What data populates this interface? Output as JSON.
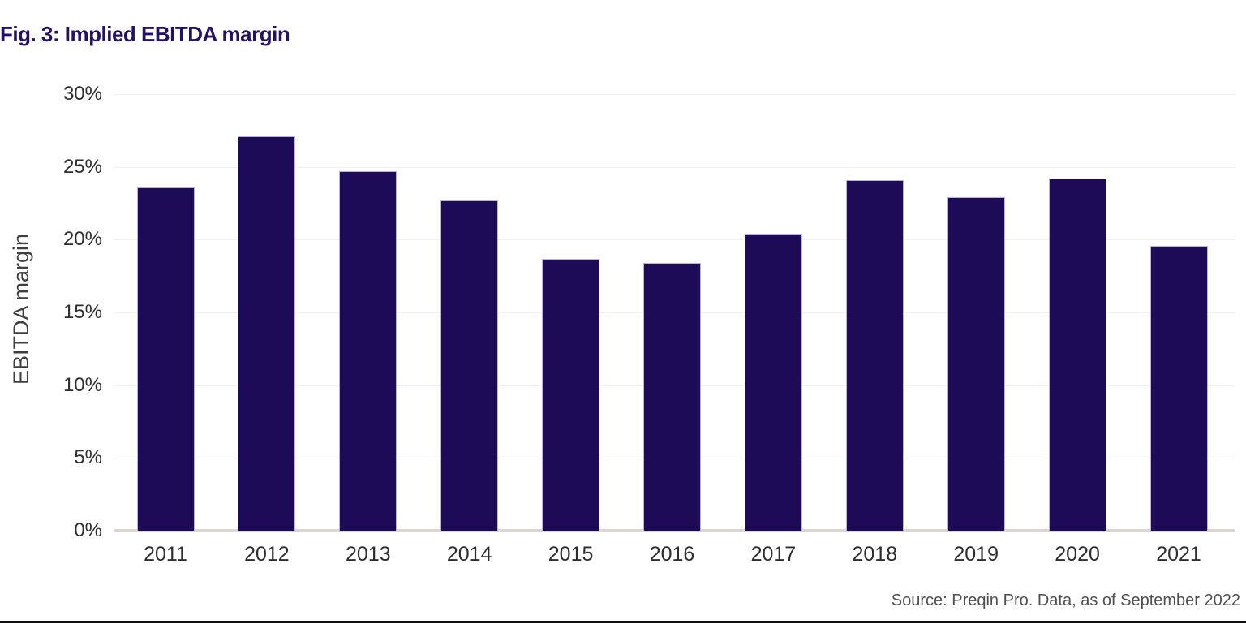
{
  "figure": {
    "title": "Fig. 3: Implied EBITDA margin",
    "source": "Source: Preqin Pro. Data, as of September 2022"
  },
  "chart_data": {
    "type": "bar",
    "title": "Fig. 3: Implied EBITDA margin",
    "categories": [
      "2011",
      "2012",
      "2013",
      "2014",
      "2015",
      "2016",
      "2017",
      "2018",
      "2019",
      "2020",
      "2021"
    ],
    "values": [
      23.6,
      27.1,
      24.7,
      22.7,
      18.7,
      18.4,
      20.4,
      24.1,
      22.9,
      24.2,
      19.6
    ],
    "xlabel": "",
    "ylabel": "EBITDA margin",
    "ylim": [
      0,
      30
    ],
    "ytick_step": 5,
    "ytick_labels": [
      "0%",
      "5%",
      "10%",
      "15%",
      "20%",
      "25%",
      "30%"
    ],
    "grid": "horizontal-only",
    "legend": "none",
    "annotation": "Source: Preqin Pro. Data, as of September 2022",
    "colors": {
      "bar_fill": "#1e0b58",
      "bar_border": "#bbb1da",
      "title_text": "#241164",
      "grid_line": "#f3f1ef",
      "axis_line": "#dbd5cd",
      "tick_text": "#2e2e2e",
      "axis_label_text": "#3f3f3f",
      "source_text": "#4f4f4f",
      "bottom_rule": "#0f0f10"
    }
  }
}
